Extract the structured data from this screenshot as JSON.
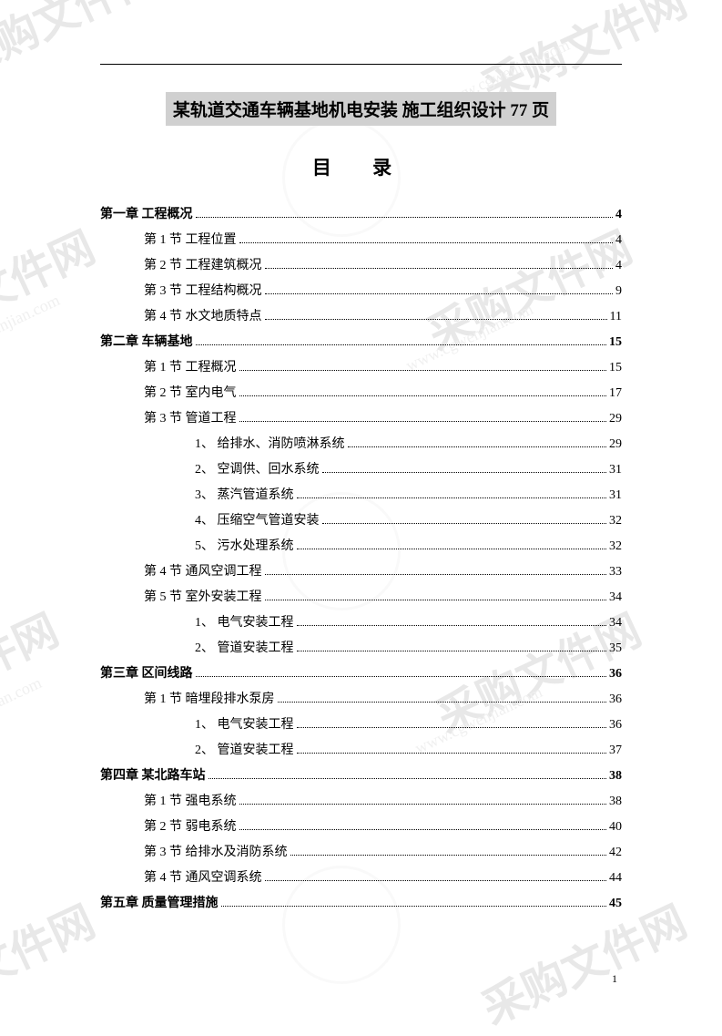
{
  "watermark_main": "采购文件网",
  "watermark_url": "www.cgwenjian.com",
  "title": "某轨道交通车辆基地机电安装  施工组织设计  77 页",
  "toc_heading": "目    录",
  "page_number": "1",
  "toc": [
    {
      "level": 0,
      "label": "第一章  工程概况",
      "page": "4"
    },
    {
      "level": 1,
      "label": "第 1 节  工程位置",
      "page": "4"
    },
    {
      "level": 1,
      "label": "第 2 节  工程建筑概况",
      "page": "4"
    },
    {
      "level": 1,
      "label": "第 3 节  工程结构概况",
      "page": "9"
    },
    {
      "level": 1,
      "label": "第 4 节  水文地质特点",
      "page": "11"
    },
    {
      "level": 0,
      "label": "第二章  车辆基地",
      "page": "15"
    },
    {
      "level": 1,
      "label": "第 1 节  工程概况",
      "page": "15"
    },
    {
      "level": 1,
      "label": "第 2 节  室内电气",
      "page": "17"
    },
    {
      "level": 1,
      "label": "第 3 节  管道工程",
      "page": "29"
    },
    {
      "level": 2,
      "label": "1、 给排水、消防喷淋系统",
      "page": "29"
    },
    {
      "level": 2,
      "label": "2、 空调供、回水系统",
      "page": "31"
    },
    {
      "level": 2,
      "label": "3、 蒸汽管道系统",
      "page": "31"
    },
    {
      "level": 2,
      "label": "4、 压缩空气管道安装",
      "page": "32"
    },
    {
      "level": 2,
      "label": "5、 污水处理系统",
      "page": "32"
    },
    {
      "level": 1,
      "label": "第 4 节  通风空调工程",
      "page": "33"
    },
    {
      "level": 1,
      "label": "第 5 节  室外安装工程",
      "page": "34"
    },
    {
      "level": 2,
      "label": "1、 电气安装工程",
      "page": "34"
    },
    {
      "level": 2,
      "label": "2、 管道安装工程",
      "page": "35"
    },
    {
      "level": 0,
      "label": "第三章  区间线路",
      "page": "36"
    },
    {
      "level": 1,
      "label": "第 1 节  暗埋段排水泵房",
      "page": "36"
    },
    {
      "level": 2,
      "label": "1、 电气安装工程",
      "page": "36"
    },
    {
      "level": 2,
      "label": "2、 管道安装工程",
      "page": "37"
    },
    {
      "level": 0,
      "label": "第四章  某北路车站",
      "page": "38"
    },
    {
      "level": 1,
      "label": "第 1 节  强电系统",
      "page": "38"
    },
    {
      "level": 1,
      "label": "第 2 节  弱电系统",
      "page": "40"
    },
    {
      "level": 1,
      "label": "第 3 节  给排水及消防系统",
      "page": "42"
    },
    {
      "level": 1,
      "label": "第 4 节  通风空调系统",
      "page": "44"
    },
    {
      "level": 0,
      "label": "第五章  质量管理措施",
      "page": "45"
    }
  ]
}
